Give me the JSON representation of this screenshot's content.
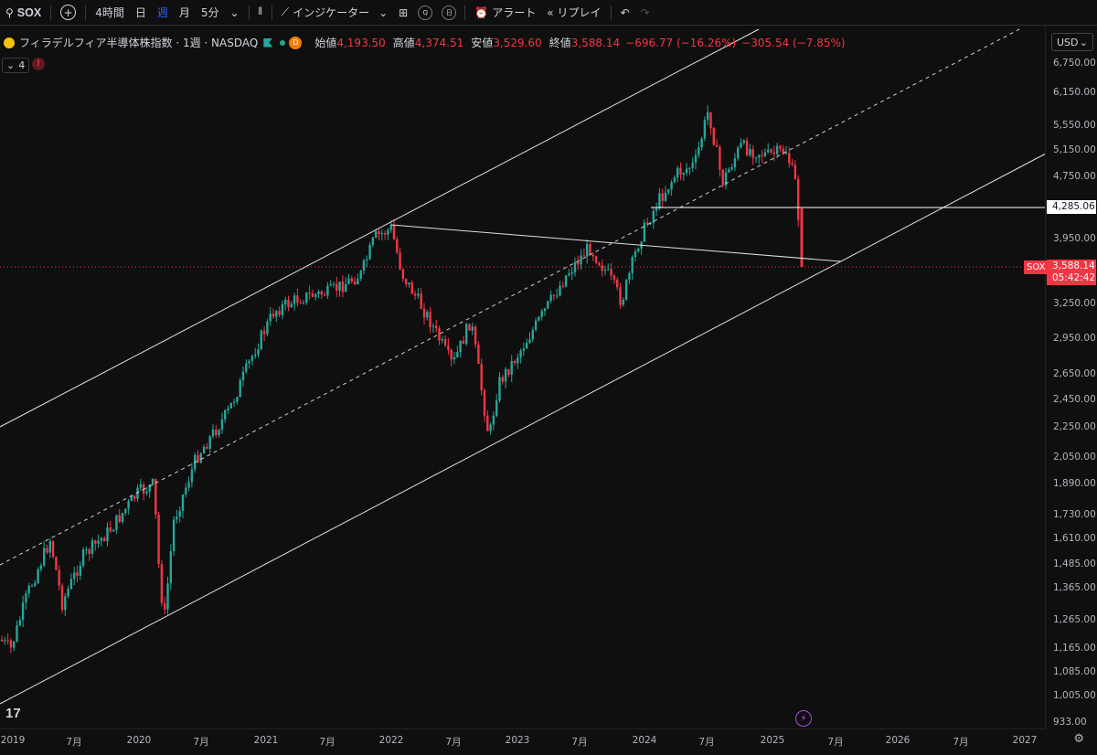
{
  "toolbar": {
    "symbol": "SOX",
    "interval_4h": "4時間",
    "interval_day": "日",
    "interval_week": "週",
    "interval_month": "月",
    "interval_5m": "5分",
    "indicators": "インジケーター",
    "alert": "アラート",
    "replay": "リプレイ"
  },
  "legend": {
    "title": "フィラデルフィア半導体株指数 · 1週 · NASDAQ",
    "badge": "D",
    "open_label": "始値",
    "open": "4,193.50",
    "high_label": "高値",
    "high": "4,374.51",
    "low_label": "安値",
    "low": "3,529.60",
    "close_label": "終値",
    "close": "3,588.14",
    "change": "−696.77 (−16.26%)",
    "change2": "−305.54 (−7.85%)",
    "collapse_count": "4",
    "error_mark": "!"
  },
  "currency": "USD",
  "price_axis": [
    "6,750.00",
    "6,150.00",
    "5,550.00",
    "5,150.00",
    "4,750.00",
    "3,950.00",
    "3,250.00",
    "2,950.00",
    "2,650.00",
    "2,450.00",
    "2,250.00",
    "2,050.00",
    "1,890.00",
    "1,730.00",
    "1,610.00",
    "1,485.00",
    "1,365.00",
    "1,265.00",
    "1,165.00",
    "1,085.00",
    "1,005.00",
    "933.00"
  ],
  "tags": {
    "level": "4,285.06",
    "price": "3,588.14",
    "countdown": "05:42:42",
    "sox": "SOX"
  },
  "time_axis": [
    "2019",
    "7月",
    "2020",
    "7月",
    "2021",
    "7月",
    "2022",
    "7月",
    "2023",
    "7月",
    "2024",
    "7月",
    "2025",
    "7月",
    "2026",
    "7月",
    "2027"
  ],
  "colors": {
    "up": "#26a69a",
    "down": "#f23645",
    "bg": "#0f0f0f"
  }
}
